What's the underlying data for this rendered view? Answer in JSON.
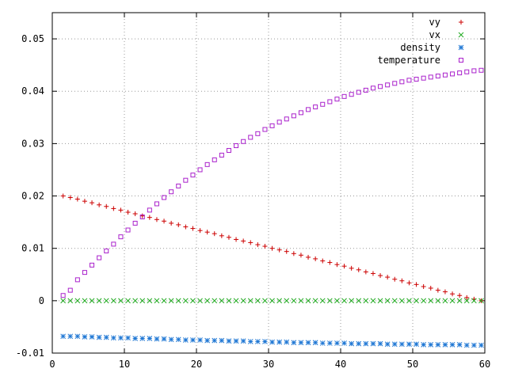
{
  "chart_data": {
    "type": "scatter",
    "title": "",
    "xlabel": "",
    "ylabel": "",
    "xlim": [
      0,
      60
    ],
    "ylim": [
      -0.01,
      0.055
    ],
    "grid": true,
    "legend_position": "top-right",
    "x_ticks": [
      "0",
      "10",
      "20",
      "30",
      "40",
      "50",
      "60"
    ],
    "y_ticks": [
      "-0.01",
      "0",
      "0.01",
      "0.02",
      "0.03",
      "0.04",
      "0.05"
    ],
    "x": [
      1.5,
      2.5,
      3.5,
      4.5,
      5.5,
      6.5,
      7.5,
      8.5,
      9.5,
      10.5,
      11.5,
      12.5,
      13.5,
      14.5,
      15.5,
      16.5,
      17.5,
      18.5,
      19.5,
      20.5,
      21.5,
      22.5,
      23.5,
      24.5,
      25.5,
      26.5,
      27.5,
      28.5,
      29.5,
      30.5,
      31.5,
      32.5,
      33.5,
      34.5,
      35.5,
      36.5,
      37.5,
      38.5,
      39.5,
      40.5,
      41.5,
      42.5,
      43.5,
      44.5,
      45.5,
      46.5,
      47.5,
      48.5,
      49.5,
      50.5,
      51.5,
      52.5,
      53.5,
      54.5,
      55.5,
      56.5,
      57.5,
      58.5,
      59.5
    ],
    "series": [
      {
        "name": "vy",
        "marker": "plus",
        "color": "#cc0000",
        "values": [
          0.02,
          0.0197,
          0.0194,
          0.019,
          0.0187,
          0.0183,
          0.018,
          0.0176,
          0.0173,
          0.0169,
          0.0166,
          0.0162,
          0.0159,
          0.0155,
          0.0152,
          0.0148,
          0.0145,
          0.0141,
          0.0138,
          0.0134,
          0.0131,
          0.0128,
          0.0124,
          0.0121,
          0.0117,
          0.0114,
          0.0111,
          0.0107,
          0.0104,
          0.01,
          0.0097,
          0.0094,
          0.009,
          0.0087,
          0.0083,
          0.008,
          0.0076,
          0.0073,
          0.0069,
          0.0066,
          0.0062,
          0.0059,
          0.0055,
          0.0052,
          0.0048,
          0.0045,
          0.0041,
          0.0038,
          0.0034,
          0.0031,
          0.0027,
          0.0024,
          0.002,
          0.0017,
          0.0013,
          0.001,
          0.0006,
          0.0003,
          0.0
        ]
      },
      {
        "name": "vx",
        "marker": "cross",
        "color": "#22aa22",
        "values": [
          0,
          0,
          0,
          0,
          0,
          0,
          0,
          0,
          0,
          0,
          0,
          0,
          0,
          0,
          0,
          0,
          0,
          0,
          0,
          0,
          0,
          0,
          0,
          0,
          0,
          0,
          0,
          0,
          0,
          0,
          0,
          0,
          0,
          0,
          0,
          0,
          0,
          0,
          0,
          0,
          0,
          0,
          0,
          0,
          0,
          0,
          0,
          0,
          0,
          0,
          0,
          0,
          0,
          0,
          0,
          0,
          0,
          0,
          0
        ]
      },
      {
        "name": "density",
        "marker": "star",
        "color": "#1f77d4",
        "values": [
          -0.0068,
          -0.0068,
          -0.0068,
          -0.0069,
          -0.0069,
          -0.007,
          -0.007,
          -0.0071,
          -0.0071,
          -0.0071,
          -0.0072,
          -0.0072,
          -0.0072,
          -0.0073,
          -0.0073,
          -0.0074,
          -0.0074,
          -0.0075,
          -0.0075,
          -0.0075,
          -0.0076,
          -0.0076,
          -0.0076,
          -0.0077,
          -0.0077,
          -0.0077,
          -0.0078,
          -0.0078,
          -0.0078,
          -0.0079,
          -0.0079,
          -0.0079,
          -0.008,
          -0.008,
          -0.008,
          -0.008,
          -0.0081,
          -0.0081,
          -0.0081,
          -0.0081,
          -0.0082,
          -0.0082,
          -0.0082,
          -0.0082,
          -0.0082,
          -0.0083,
          -0.0083,
          -0.0083,
          -0.0083,
          -0.0083,
          -0.0084,
          -0.0084,
          -0.0084,
          -0.0084,
          -0.0084,
          -0.0084,
          -0.0085,
          -0.0085,
          -0.0085
        ]
      },
      {
        "name": "temperature",
        "marker": "square",
        "color": "#aa22cc",
        "values": [
          0.001,
          0.002,
          0.004,
          0.0054,
          0.0068,
          0.0082,
          0.0095,
          0.0108,
          0.0122,
          0.0135,
          0.0148,
          0.016,
          0.0173,
          0.0185,
          0.0197,
          0.0208,
          0.0219,
          0.023,
          0.024,
          0.025,
          0.026,
          0.0269,
          0.0278,
          0.0287,
          0.0296,
          0.0304,
          0.0312,
          0.0319,
          0.0327,
          0.0334,
          0.0341,
          0.0347,
          0.0353,
          0.0359,
          0.0365,
          0.037,
          0.0375,
          0.038,
          0.0385,
          0.039,
          0.0394,
          0.0398,
          0.0402,
          0.0406,
          0.0409,
          0.0412,
          0.0415,
          0.0418,
          0.0421,
          0.0423,
          0.0425,
          0.0427,
          0.0429,
          0.0431,
          0.0433,
          0.0435,
          0.0437,
          0.0439,
          0.044
        ]
      }
    ]
  }
}
